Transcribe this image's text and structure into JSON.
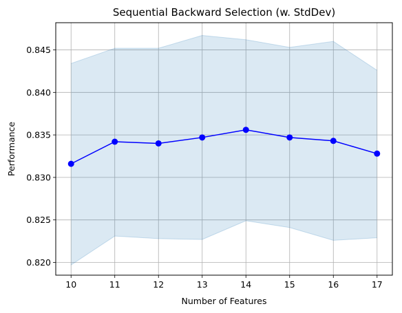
{
  "chart_data": {
    "type": "line",
    "title": "Sequential Backward Selection (w. StdDev)",
    "xlabel": "Number of Features",
    "ylabel": "Performance",
    "x": [
      10,
      11,
      12,
      13,
      14,
      15,
      16,
      17
    ],
    "series": [
      {
        "values": [
          0.8316,
          0.8342,
          0.834,
          0.8347,
          0.8356,
          0.8347,
          0.8343,
          0.8328
        ],
        "upper": [
          0.8434,
          0.8452,
          0.8452,
          0.8467,
          0.8462,
          0.8453,
          0.846,
          0.8426
        ],
        "lower": [
          0.8197,
          0.8231,
          0.8228,
          0.8227,
          0.8249,
          0.8241,
          0.8226,
          0.8229
        ],
        "color": "#0000ff",
        "band_color": "#1f77b4"
      }
    ],
    "xticks": [
      "10",
      "11",
      "12",
      "13",
      "14",
      "15",
      "16",
      "17"
    ],
    "yticks": [
      "0.820",
      "0.825",
      "0.830",
      "0.835",
      "0.840",
      "0.845"
    ],
    "xlim": [
      9.65,
      17.35
    ],
    "ylim": [
      0.8185,
      0.8482
    ],
    "grid": true,
    "legend": "none"
  }
}
